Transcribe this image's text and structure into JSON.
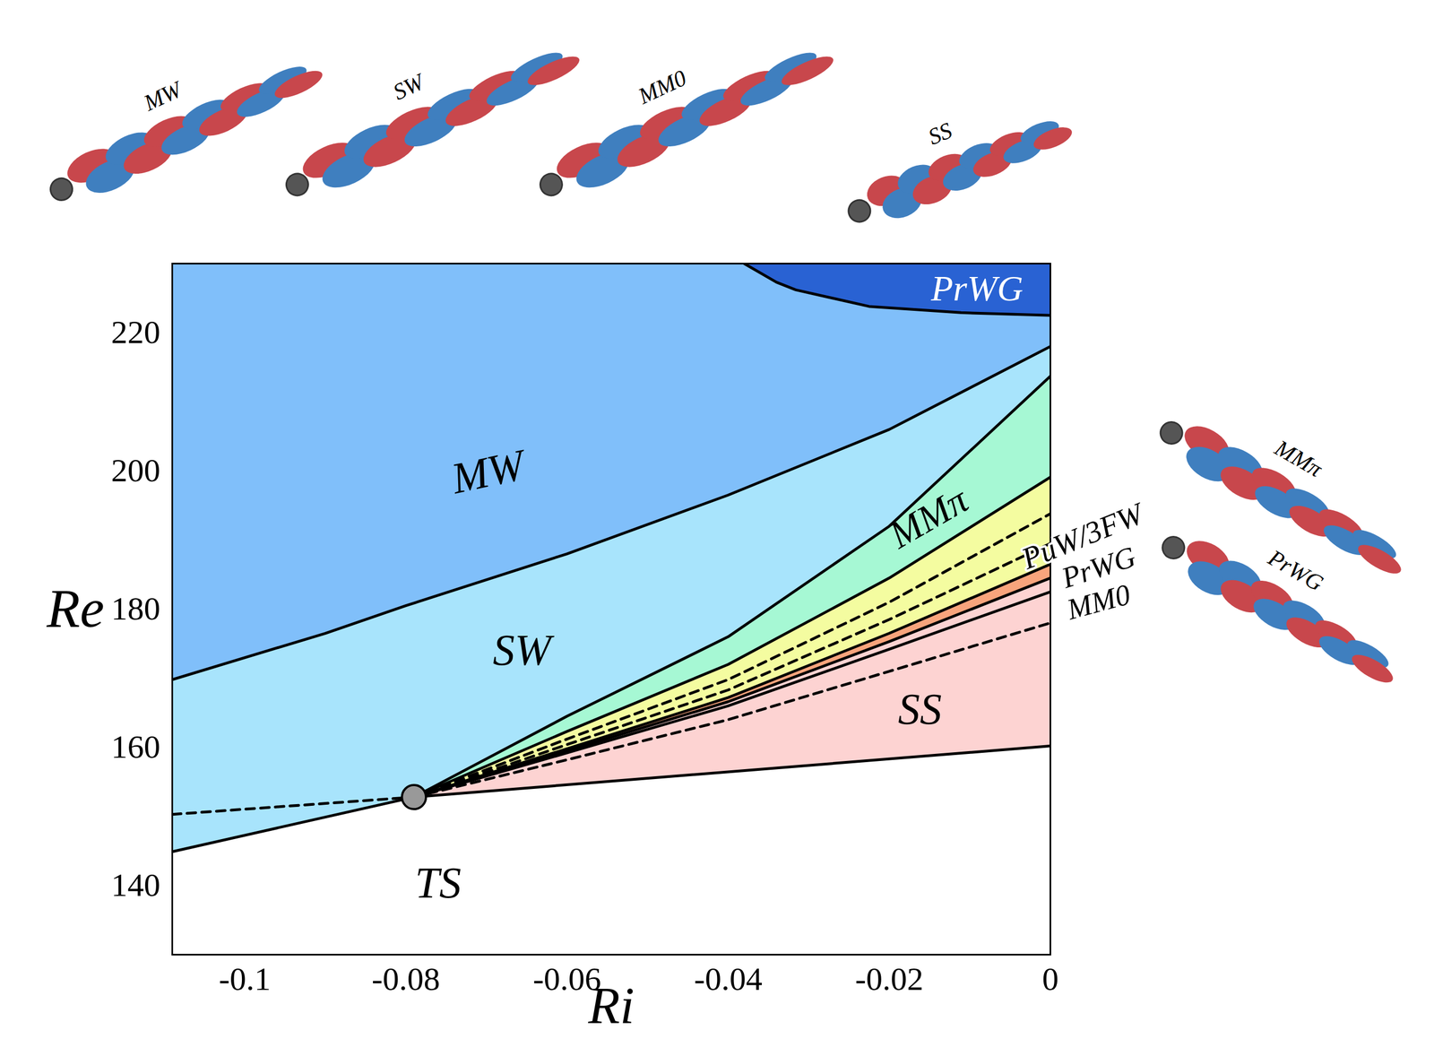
{
  "chart_data": {
    "type": "regime_diagram",
    "xlabel": "Ri",
    "ylabel": "Re",
    "xlim": [
      -0.109,
      0
    ],
    "ylim": [
      130,
      230
    ],
    "xticks": [
      -0.1,
      -0.08,
      -0.06,
      -0.04,
      -0.02,
      0
    ],
    "yticks": [
      140,
      160,
      180,
      200,
      220
    ],
    "grid": false,
    "regions": [
      {
        "color": "#80bffa",
        "x": [
          -0.109,
          -0.09,
          -0.08,
          -0.06,
          -0.04,
          -0.02,
          0,
          0,
          -0.0111,
          -0.0225,
          -0.0316,
          -0.034,
          -0.038,
          -0.109
        ],
        "y": [
          169.8,
          176.5,
          180.5,
          188,
          196.5,
          206,
          218,
          222.5,
          222.9,
          223.8,
          226.2,
          227.3,
          230,
          230
        ]
      },
      {
        "color": "#2962d3",
        "x": [
          -0.038,
          -0.034,
          -0.0316,
          -0.0225,
          -0.0111,
          0,
          0
        ],
        "y": [
          230,
          227.3,
          226.2,
          223.8,
          222.9,
          222.5,
          230
        ]
      },
      {
        "color": "#a8e4fc",
        "x": [
          -0.109,
          -0.079,
          -0.06,
          -0.04,
          -0.02,
          0,
          0,
          -0.02,
          -0.04,
          -0.06,
          -0.08,
          -0.09,
          -0.109
        ],
        "y": [
          144.9,
          152.8,
          164.5,
          176,
          192,
          213.7,
          218,
          206,
          196.5,
          188,
          180.5,
          176.5,
          169.8
        ]
      },
      {
        "color": "#a6f8d4",
        "x": [
          -0.079,
          -0.06,
          -0.04,
          -0.02,
          0,
          0,
          -0.02,
          -0.04,
          -0.06
        ],
        "y": [
          152.8,
          164.5,
          176,
          192,
          213.7,
          199.1,
          184.5,
          172,
          162.3
        ]
      },
      {
        "color": "#f4fca0",
        "x": [
          -0.079,
          -0.06,
          -0.04,
          -0.02,
          0,
          0,
          -0.02,
          -0.04,
          -0.06
        ],
        "y": [
          152.8,
          162.3,
          172,
          184.5,
          199.1,
          186.5,
          176.5,
          167.2,
          159.8
        ]
      },
      {
        "color": "#f8a47c",
        "x": [
          -0.079,
          -0.06,
          -0.04,
          -0.02,
          0,
          0,
          -0.02,
          -0.04,
          -0.06
        ],
        "y": [
          152.8,
          159.8,
          167.2,
          176.5,
          186.5,
          184.5,
          175.3,
          166.6,
          159.5
        ]
      },
      {
        "color": "#fdd3d2",
        "x": [
          -0.079,
          -0.06,
          -0.04,
          -0.02,
          0,
          0
        ],
        "y": [
          152.8,
          159.5,
          166.6,
          175.3,
          184.5,
          160.2
        ]
      }
    ],
    "boundaries": [
      {
        "line_style": "solid",
        "x": [
          -0.109,
          -0.09,
          -0.08,
          -0.06,
          -0.04,
          -0.02,
          0
        ],
        "y": [
          169.8,
          176.5,
          180.5,
          188,
          196.5,
          206,
          218
        ]
      },
      {
        "line_style": "solid",
        "x": [
          -0.038,
          -0.034,
          -0.0316,
          -0.0225,
          -0.0111,
          0
        ],
        "y": [
          230,
          227.3,
          226.2,
          223.8,
          222.9,
          222.5
        ]
      },
      {
        "line_style": "solid",
        "x": [
          -0.109,
          -0.079
        ],
        "y": [
          144.9,
          152.8
        ]
      },
      {
        "line_style": "solid",
        "x": [
          -0.079,
          -0.06,
          -0.04,
          -0.02,
          0
        ],
        "y": [
          152.8,
          164.5,
          176,
          192,
          213.7
        ]
      },
      {
        "line_style": "solid",
        "x": [
          -0.079,
          -0.06,
          -0.04,
          -0.02,
          0
        ],
        "y": [
          152.8,
          162.3,
          172,
          184.5,
          199.1
        ]
      },
      {
        "line_style": "dashed",
        "x": [
          -0.079,
          -0.06,
          -0.04,
          -0.02,
          0
        ],
        "y": [
          152.8,
          161.2,
          169.8,
          181,
          193.8
        ]
      },
      {
        "line_style": "dashed",
        "x": [
          -0.079,
          -0.06,
          -0.04,
          -0.02,
          0
        ],
        "y": [
          152.8,
          160.4,
          168.3,
          178.5,
          189.5
        ]
      },
      {
        "line_style": "solid",
        "x": [
          -0.079,
          -0.06,
          -0.04,
          -0.02,
          0
        ],
        "y": [
          152.8,
          159.8,
          167.2,
          176.5,
          186.5
        ]
      },
      {
        "line_style": "solid",
        "x": [
          -0.079,
          -0.06,
          -0.04,
          -0.02,
          0
        ],
        "y": [
          152.8,
          159.5,
          166.6,
          175.3,
          184.5
        ]
      },
      {
        "line_style": "solid",
        "x": [
          -0.079,
          -0.06,
          -0.04,
          -0.02,
          0
        ],
        "y": [
          152.8,
          159.2,
          166,
          174.2,
          182.5
        ]
      },
      {
        "line_style": "dashed",
        "x": [
          -0.079,
          -0.06,
          -0.04,
          -0.02,
          0
        ],
        "y": [
          152.8,
          158.2,
          164,
          171,
          178
        ]
      },
      {
        "line_style": "solid",
        "x": [
          -0.079,
          0
        ],
        "y": [
          152.8,
          160.2
        ]
      },
      {
        "line_style": "dashed",
        "x": [
          -0.109,
          -0.079
        ],
        "y": [
          150.3,
          152.8
        ]
      }
    ],
    "point": {
      "x": -0.079,
      "y": 152.8
    },
    "labels": [
      {
        "text": "MW",
        "x": -0.0698,
        "y": 199.8
      },
      {
        "text": "SW",
        "x": -0.0656,
        "y": 174
      },
      {
        "text": "MMπ",
        "x": -0.0151,
        "y": 193.2
      },
      {
        "text": "PuW/3FW",
        "x": 0.004,
        "y": 190.5
      },
      {
        "text": "PrWG",
        "x": 0.006,
        "y": 186
      },
      {
        "text": "MM0",
        "x": 0.006,
        "y": 181
      },
      {
        "text": "SS",
        "x": -0.0162,
        "y": 165.4
      },
      {
        "text": "PrWG",
        "x": -0.0091,
        "y": 226.3
      },
      {
        "text": "TS",
        "x": -0.076,
        "y": 140.3
      }
    ],
    "thumbnail_labels": [
      "MW",
      "SW",
      "MM0",
      "SS",
      "MMπ",
      "PrWG"
    ]
  }
}
